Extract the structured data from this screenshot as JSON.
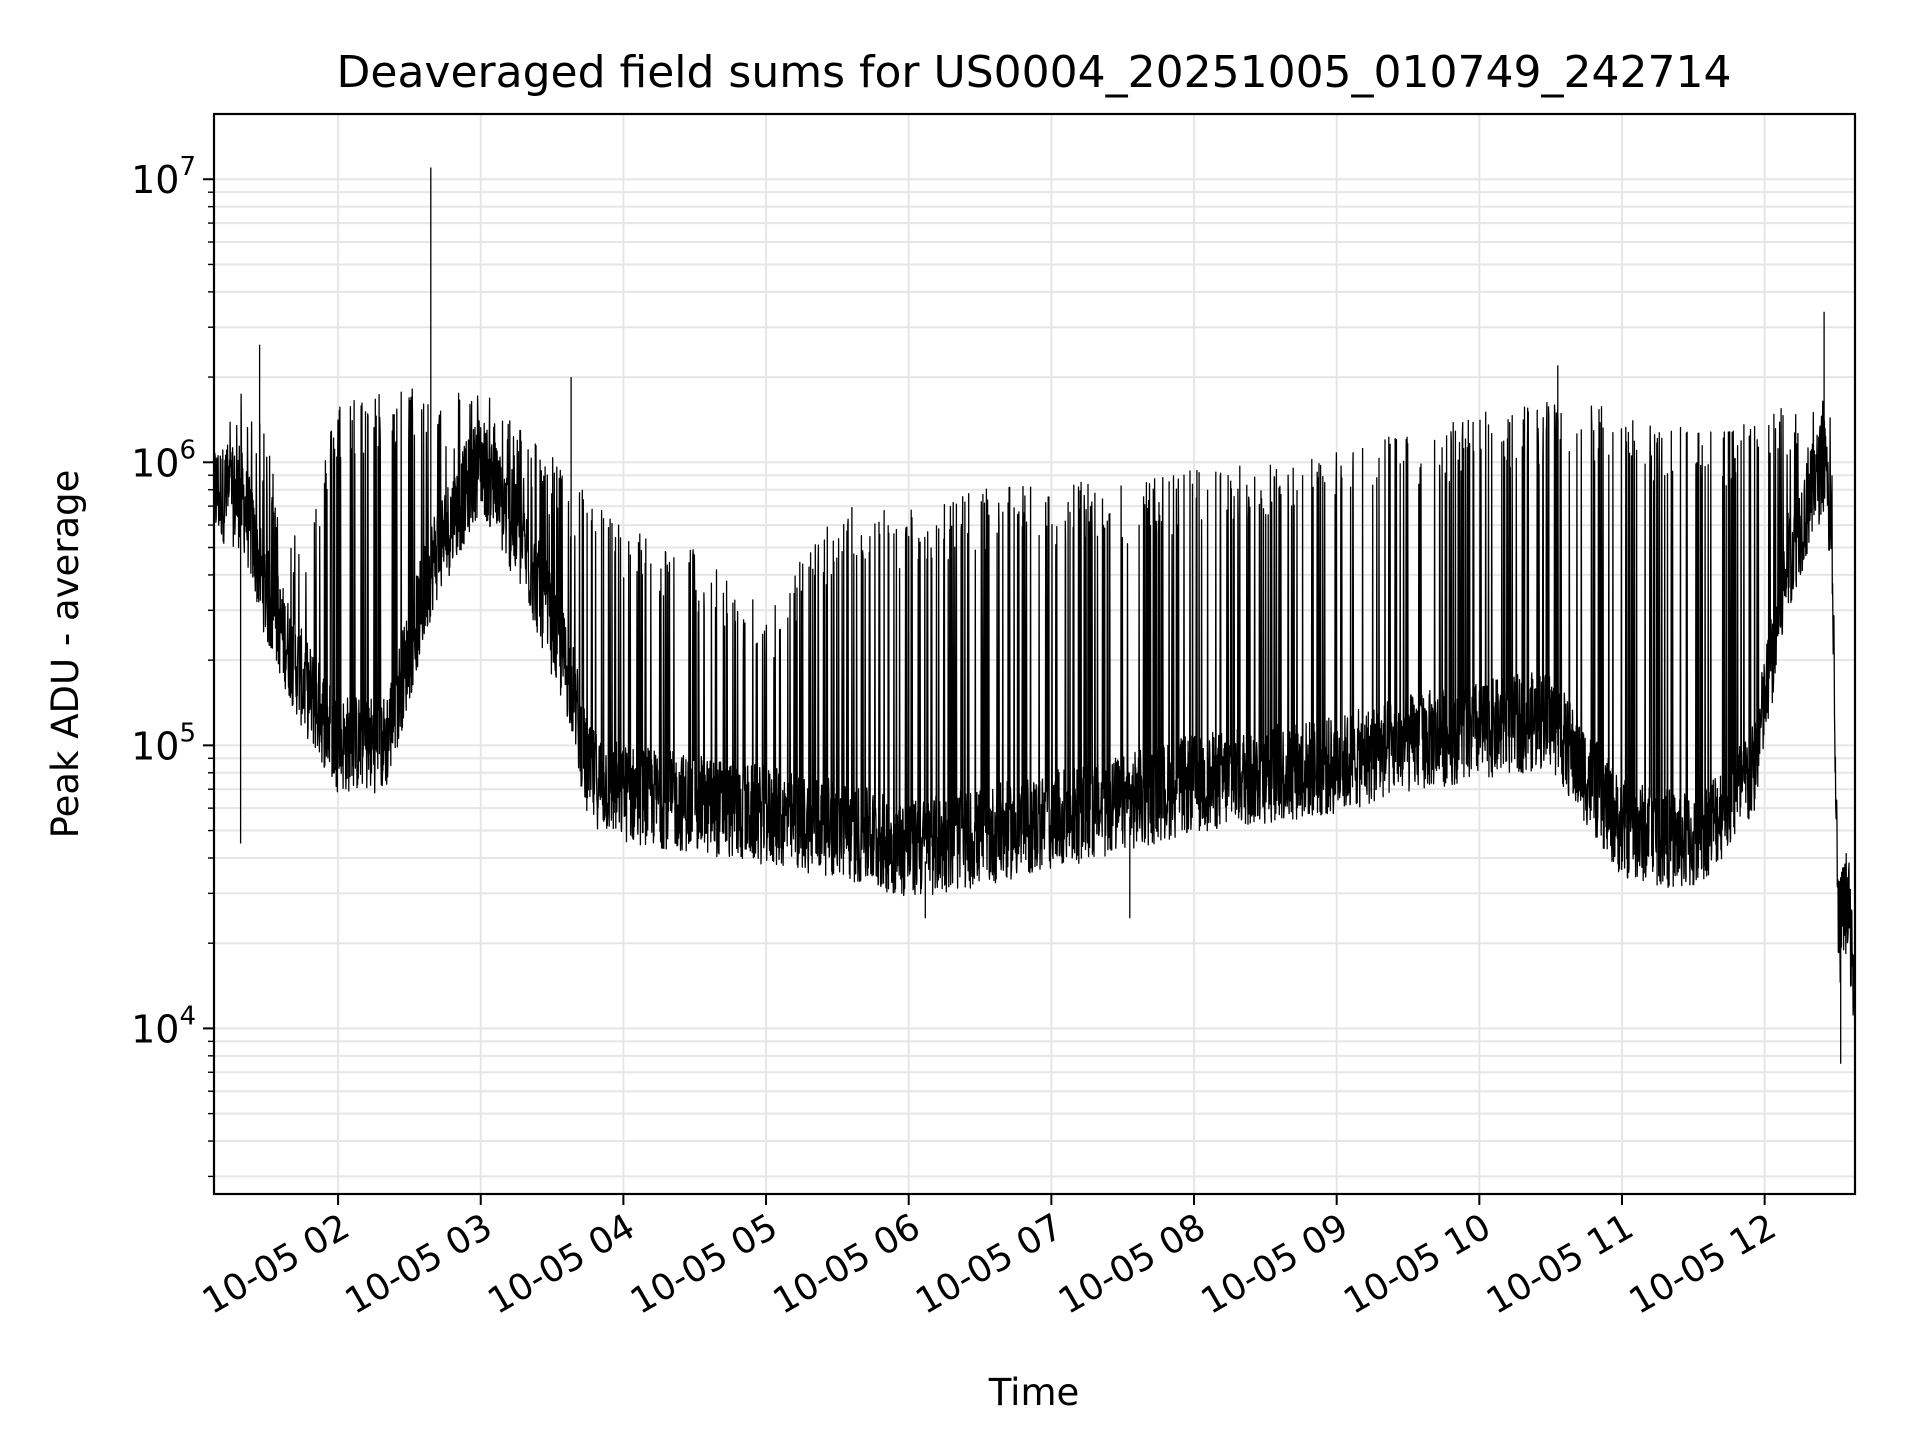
{
  "chart_data": {
    "type": "line",
    "title": "Deaveraged field sums for US0004_20251005_010749_242714",
    "xlabel": "Time",
    "ylabel": "Peak ADU - average",
    "yscale": "log",
    "ylim": [
      2600,
      17000000
    ],
    "xlim": [
      "2025-10-05 01:07:49",
      "2025-10-05 12:38:00"
    ],
    "grid": true,
    "line_color": "#000000",
    "grid_color": "#e6e6e6",
    "x_ticks": [
      {
        "x": "2025-10-05 02:00",
        "label": "10-05 02"
      },
      {
        "x": "2025-10-05 03:00",
        "label": "10-05 03"
      },
      {
        "x": "2025-10-05 04:00",
        "label": "10-05 04"
      },
      {
        "x": "2025-10-05 05:00",
        "label": "10-05 05"
      },
      {
        "x": "2025-10-05 06:00",
        "label": "10-05 06"
      },
      {
        "x": "2025-10-05 07:00",
        "label": "10-05 07"
      },
      {
        "x": "2025-10-05 08:00",
        "label": "10-05 08"
      },
      {
        "x": "2025-10-05 09:00",
        "label": "10-05 09"
      },
      {
        "x": "2025-10-05 10:00",
        "label": "10-05 10"
      },
      {
        "x": "2025-10-05 11:00",
        "label": "10-05 11"
      },
      {
        "x": "2025-10-05 12:00",
        "label": "10-05 12"
      }
    ],
    "y_ticks": [
      {
        "value": 10000,
        "base": "10",
        "exp": "4"
      },
      {
        "value": 100000,
        "base": "10",
        "exp": "5"
      },
      {
        "value": 1000000,
        "base": "10",
        "exp": "6"
      },
      {
        "value": 10000000,
        "base": "10",
        "exp": "7"
      }
    ],
    "envelope": {
      "description_free": true,
      "columns": [
        "time",
        "baseline",
        "peak"
      ],
      "points": [
        [
          "2025-10-05 01:08",
          700000,
          1000000
        ],
        [
          "2025-10-05 01:20",
          650000,
          1900000
        ],
        [
          "2025-10-05 01:30",
          300000,
          1200000
        ],
        [
          "2025-10-05 01:45",
          150000,
          500000
        ],
        [
          "2025-10-05 02:00",
          90000,
          1700000
        ],
        [
          "2025-10-05 02:20",
          90000,
          1800000
        ],
        [
          "2025-10-05 02:40",
          400000,
          1900000
        ],
        [
          "2025-10-05 03:00",
          900000,
          1800000
        ],
        [
          "2025-10-05 03:20",
          400000,
          1300000
        ],
        [
          "2025-10-05 03:38",
          150000,
          900000
        ],
        [
          "2025-10-05 03:45",
          70000,
          800000
        ],
        [
          "2025-10-05 04:00",
          60000,
          600000
        ],
        [
          "2025-10-05 04:30",
          55000,
          500000
        ],
        [
          "2025-10-05 05:00",
          50000,
          300000
        ],
        [
          "2025-10-05 05:30",
          45000,
          700000
        ],
        [
          "2025-10-05 06:00",
          38000,
          700000
        ],
        [
          "2025-10-05 06:30",
          42000,
          800000
        ],
        [
          "2025-10-05 07:00",
          48000,
          850000
        ],
        [
          "2025-10-05 07:30",
          55000,
          850000
        ],
        [
          "2025-10-05 08:00",
          65000,
          950000
        ],
        [
          "2025-10-05 08:30",
          70000,
          1000000
        ],
        [
          "2025-10-05 09:00",
          75000,
          1100000
        ],
        [
          "2025-10-05 09:30",
          90000,
          1300000
        ],
        [
          "2025-10-05 10:00",
          100000,
          1500000
        ],
        [
          "2025-10-05 10:30",
          110000,
          1650000
        ],
        [
          "2025-10-05 10:40",
          80000,
          1700000
        ],
        [
          "2025-10-05 11:00",
          45000,
          1500000
        ],
        [
          "2025-10-05 11:30",
          40000,
          1300000
        ],
        [
          "2025-10-05 11:55",
          70000,
          1400000
        ],
        [
          "2025-10-05 12:10",
          400000,
          1600000
        ],
        [
          "2025-10-05 12:25",
          900000,
          1800000
        ],
        [
          "2025-10-05 12:28",
          500000,
          1500000
        ],
        [
          "2025-10-05 12:31",
          20000,
          22000
        ],
        [
          "2025-10-05 12:35",
          27000,
          29000
        ],
        [
          "2025-10-05 12:38",
          10000,
          12000
        ]
      ]
    },
    "notable_points": [
      {
        "x": "2025-10-05 01:19",
        "y": 45000
      },
      {
        "x": "2025-10-05 01:27",
        "y": 2600000
      },
      {
        "x": "2025-10-05 02:39",
        "y": 11000000
      },
      {
        "x": "2025-10-05 03:38",
        "y": 2000000
      },
      {
        "x": "2025-10-05 06:07",
        "y": 24500
      },
      {
        "x": "2025-10-05 07:33",
        "y": 24500
      },
      {
        "x": "2025-10-05 10:33",
        "y": 2200000
      },
      {
        "x": "2025-10-05 12:25",
        "y": 3400000
      },
      {
        "x": "2025-10-05 12:32",
        "y": 7500
      }
    ]
  }
}
